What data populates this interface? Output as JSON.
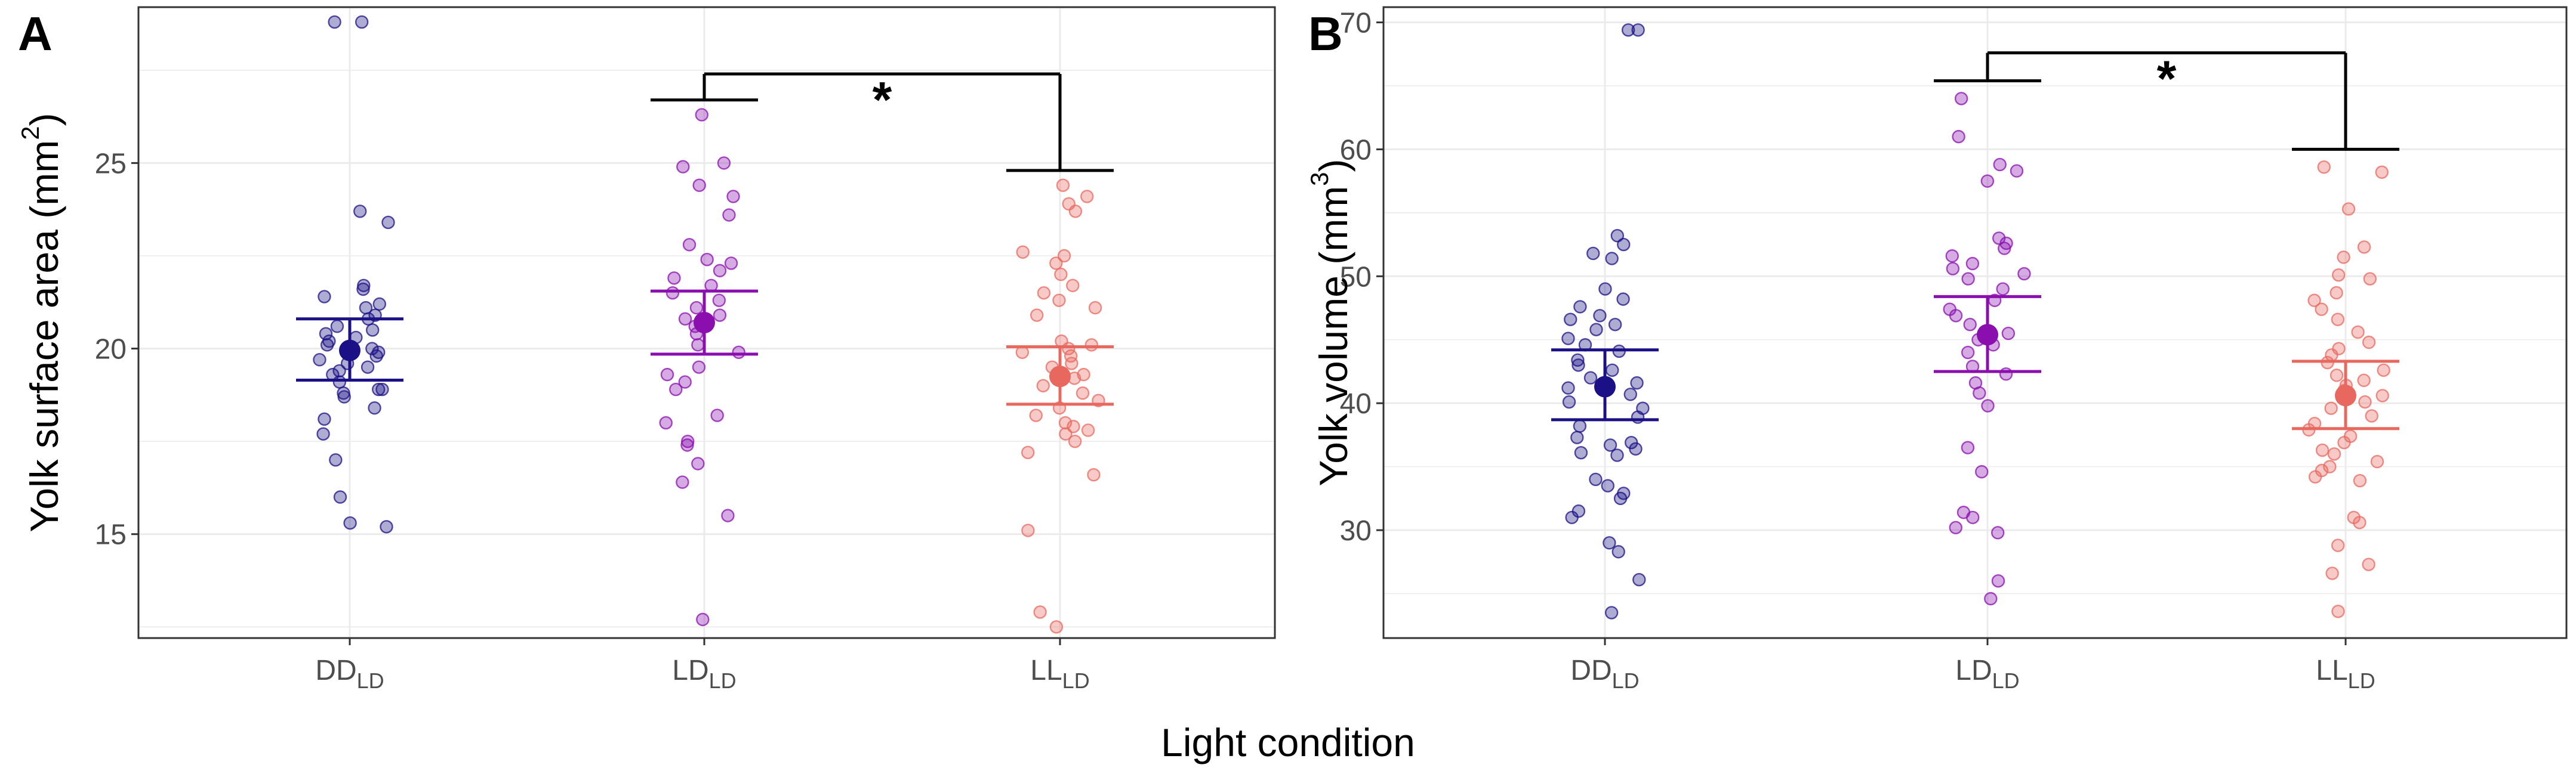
{
  "figure": {
    "xlabel": "Light condition"
  },
  "colors": {
    "DD_LD": "#1b1085",
    "LD_LD": "#8a0fae",
    "LL_LD": "#e8685f",
    "bracket": "#000000",
    "grid": "#ebebeb",
    "border": "#333333"
  },
  "chart_data": [
    {
      "panel": "A",
      "type": "scatter",
      "ylabel": "Yolk surface area (mm",
      "ylabel_sup": "2",
      "ylabel_end": ")",
      "ylim": [
        12.2,
        29.2
      ],
      "yticks": [
        15,
        20,
        25
      ],
      "categories": [
        {
          "key": "DD_LD",
          "main": "DD",
          "sub": "LD"
        },
        {
          "key": "LD_LD",
          "main": "LD",
          "sub": "LD"
        },
        {
          "key": "LL_LD",
          "main": "LL",
          "sub": "LD"
        }
      ],
      "groups": [
        {
          "key": "DD_LD",
          "mean": 19.95,
          "lower": 19.15,
          "upper": 20.8,
          "points": [
            28.8,
            28.8,
            23.7,
            23.4,
            21.7,
            21.6,
            21.4,
            21.2,
            21.1,
            20.9,
            20.8,
            20.6,
            20.5,
            20.4,
            20.3,
            20.2,
            20.1,
            20.0,
            19.9,
            19.8,
            19.7,
            19.6,
            19.5,
            19.4,
            19.3,
            19.1,
            18.9,
            18.9,
            18.8,
            18.7,
            18.4,
            18.1,
            17.7,
            17.0,
            16.0,
            15.3,
            15.2
          ]
        },
        {
          "key": "LD_LD",
          "mean": 20.7,
          "lower": 19.85,
          "upper": 21.55,
          "points": [
            26.3,
            25.0,
            24.9,
            24.4,
            24.1,
            23.6,
            22.8,
            22.4,
            22.3,
            22.1,
            21.9,
            21.7,
            21.5,
            21.3,
            21.1,
            20.9,
            20.8,
            20.6,
            20.4,
            20.1,
            19.9,
            19.5,
            19.3,
            19.1,
            18.9,
            18.2,
            18.0,
            17.5,
            17.4,
            16.9,
            16.4,
            15.5,
            12.7
          ]
        },
        {
          "key": "LL_LD",
          "mean": 19.25,
          "lower": 18.5,
          "upper": 20.05,
          "points": [
            24.4,
            24.1,
            23.9,
            23.7,
            22.6,
            22.5,
            22.3,
            22.0,
            21.7,
            21.5,
            21.3,
            21.1,
            20.9,
            20.2,
            20.1,
            20.0,
            19.9,
            19.8,
            19.6,
            19.5,
            19.3,
            19.2,
            19.0,
            18.8,
            18.6,
            18.4,
            18.2,
            18.0,
            17.9,
            17.8,
            17.7,
            17.5,
            17.2,
            16.6,
            15.1,
            12.9,
            12.5
          ]
        }
      ],
      "comparison": {
        "from": "LD_LD",
        "to": "LL_LD",
        "left_y": 26.7,
        "right_y": 24.8,
        "top_y": 27.4,
        "label": "*"
      }
    },
    {
      "panel": "B",
      "type": "scatter",
      "ylabel": "Yolk volume (mm",
      "ylabel_sup": "3",
      "ylabel_end": ")",
      "ylim": [
        21.5,
        71.2
      ],
      "yticks": [
        30,
        40,
        50,
        60,
        70
      ],
      "categories": [
        {
          "key": "DD_LD",
          "main": "DD",
          "sub": "LD"
        },
        {
          "key": "LD_LD",
          "main": "LD",
          "sub": "LD"
        },
        {
          "key": "LL_LD",
          "main": "LL",
          "sub": "LD"
        }
      ],
      "groups": [
        {
          "key": "DD_LD",
          "mean": 41.3,
          "lower": 38.7,
          "upper": 44.2,
          "points": [
            69.4,
            69.4,
            53.2,
            52.5,
            51.8,
            51.4,
            49.0,
            48.2,
            47.6,
            46.9,
            46.6,
            46.2,
            45.8,
            45.1,
            44.6,
            44.1,
            43.4,
            43.0,
            42.6,
            42.0,
            41.6,
            41.2,
            40.7,
            40.1,
            39.6,
            38.9,
            38.2,
            37.3,
            36.9,
            36.7,
            36.4,
            36.1,
            35.9,
            34.0,
            33.5,
            32.9,
            32.5,
            31.5,
            31.0,
            29.0,
            28.3,
            26.1,
            23.5
          ]
        },
        {
          "key": "LD_LD",
          "mean": 45.4,
          "lower": 42.5,
          "upper": 48.4,
          "points": [
            64.0,
            61.0,
            58.8,
            58.3,
            57.5,
            53.0,
            52.6,
            52.2,
            51.6,
            51.0,
            50.6,
            50.2,
            49.8,
            49.0,
            48.1,
            47.4,
            46.9,
            46.2,
            45.5,
            45.0,
            44.6,
            44.0,
            42.9,
            42.3,
            41.6,
            40.8,
            39.8,
            36.5,
            34.6,
            31.4,
            31.0,
            30.2,
            29.8,
            26.0,
            24.6
          ]
        },
        {
          "key": "LL_LD",
          "mean": 40.6,
          "lower": 38.0,
          "upper": 43.3,
          "points": [
            58.6,
            58.2,
            55.3,
            52.3,
            51.5,
            50.1,
            49.8,
            48.7,
            48.1,
            47.4,
            46.6,
            45.6,
            44.8,
            44.3,
            43.8,
            43.2,
            42.6,
            42.2,
            41.8,
            41.4,
            41.0,
            40.6,
            40.1,
            39.6,
            39.0,
            38.4,
            37.9,
            37.4,
            36.9,
            36.3,
            36.0,
            35.4,
            35.0,
            34.7,
            34.2,
            33.9,
            31.0,
            30.6,
            28.8,
            27.3,
            26.6,
            23.6
          ]
        }
      ],
      "comparison": {
        "from": "LD_LD",
        "to": "LL_LD",
        "left_y": 65.4,
        "right_y": 60.0,
        "top_y": 67.6,
        "label": "*"
      }
    }
  ]
}
